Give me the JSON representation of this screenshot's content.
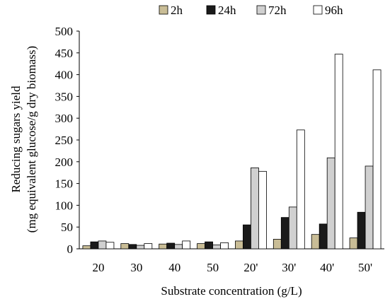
{
  "chart_data": {
    "type": "bar",
    "title": "",
    "xlabel": "Substrate concentration (g/L)",
    "ylabel_line1": "Reducing sugars yield",
    "ylabel_line2": "(mg equivalent glucose/g dry biomass)",
    "categories": [
      "20",
      "30",
      "40",
      "50",
      "20'",
      "30'",
      "40'",
      "50'"
    ],
    "y_ticks": [
      "0",
      "50",
      "100",
      "150",
      "200",
      "250",
      "300",
      "350",
      "400",
      "450",
      "500"
    ],
    "ylim": [
      0,
      500
    ],
    "grid": false,
    "legend_position": "top",
    "series": [
      {
        "name": "2h",
        "color": "#c9bd96",
        "values": [
          7,
          12,
          11,
          12,
          18,
          22,
          33,
          25
        ]
      },
      {
        "name": "24h",
        "color": "#1a1a1a",
        "values": [
          16,
          10,
          13,
          16,
          55,
          72,
          57,
          84
        ]
      },
      {
        "name": "72h",
        "color": "#d0d0d0",
        "values": [
          18,
          8,
          10,
          9,
          186,
          96,
          209,
          190
        ]
      },
      {
        "name": "96h",
        "color": "#ffffff",
        "values": [
          15,
          12,
          18,
          14,
          178,
          273,
          447,
          411
        ]
      }
    ]
  }
}
